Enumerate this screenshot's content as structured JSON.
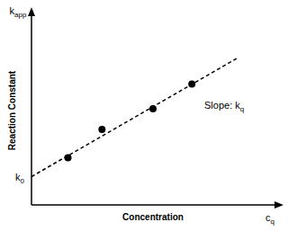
{
  "chart_data": {
    "type": "scatter",
    "x_label": "Concentration",
    "y_label": "Reaction Constant",
    "y_axis_symbol": {
      "main": "k",
      "sub": "app"
    },
    "x_axis_symbol": {
      "main": "c",
      "sub": "q"
    },
    "intercept_label": {
      "main": "k",
      "sub": "0"
    },
    "slope_label": {
      "text": "Slope: ",
      "main": "k",
      "sub": "q"
    },
    "xlim": [
      0,
      10
    ],
    "ylim": [
      0,
      10
    ],
    "tick_labels": false,
    "grid": false,
    "series": [
      {
        "type": "scatter",
        "marker": "circle",
        "color": "#000000",
        "x": [
          1.5,
          2.9,
          5.0,
          6.6
        ],
        "values": [
          2.5,
          4.0,
          5.1,
          6.4
        ]
      },
      {
        "type": "line",
        "line_style": "dashed",
        "color": "#000000",
        "x": [
          0,
          8.5
        ],
        "values": [
          1.5,
          7.8
        ]
      }
    ]
  }
}
